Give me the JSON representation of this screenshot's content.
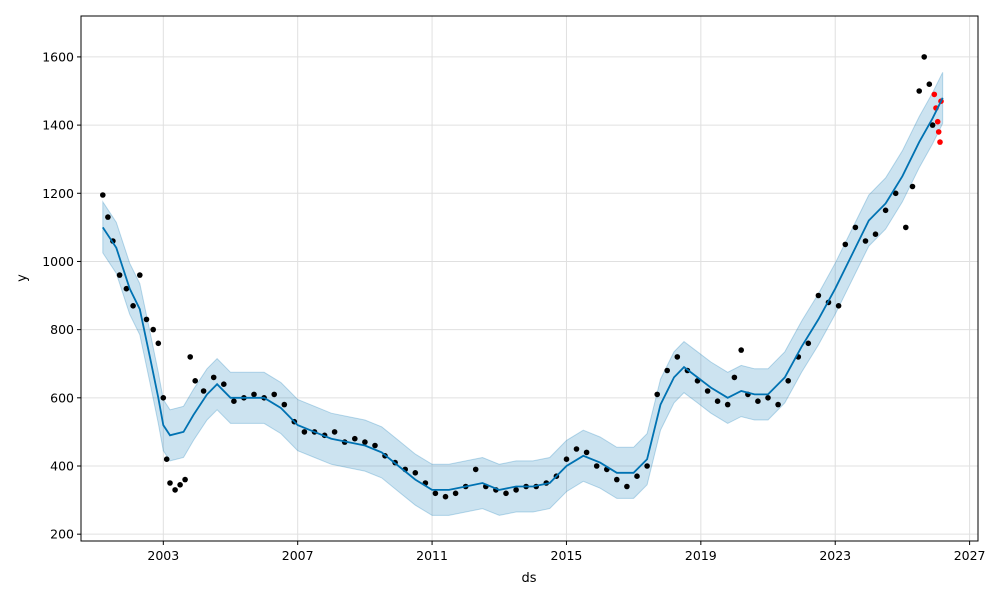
{
  "chart_data": {
    "type": "scatter",
    "title": "",
    "xlabel": "ds",
    "ylabel": "y",
    "xlim": [
      2000.55,
      2027.25
    ],
    "ylim": [
      180,
      1720
    ],
    "x_ticks": [
      2003,
      2007,
      2011,
      2015,
      2019,
      2023,
      2027
    ],
    "y_ticks": [
      200,
      400,
      600,
      800,
      1000,
      1200,
      1400,
      1600
    ],
    "grid": true,
    "colors": {
      "observed": "#000000",
      "forecast_points": "#ff0000",
      "trend_line": "#0072b2",
      "uncertainty_band": "#0072b2"
    },
    "series": [
      {
        "role": "observed",
        "points": [
          [
            2001.2,
            1195
          ],
          [
            2001.35,
            1130
          ],
          [
            2001.5,
            1060
          ],
          [
            2001.7,
            960
          ],
          [
            2001.9,
            920
          ],
          [
            2002.1,
            870
          ],
          [
            2002.3,
            960
          ],
          [
            2002.5,
            830
          ],
          [
            2002.7,
            800
          ],
          [
            2002.85,
            760
          ],
          [
            2003.0,
            600
          ],
          [
            2003.1,
            420
          ],
          [
            2003.2,
            350
          ],
          [
            2003.35,
            330
          ],
          [
            2003.5,
            345
          ],
          [
            2003.65,
            360
          ],
          [
            2003.8,
            720
          ],
          [
            2003.95,
            650
          ],
          [
            2004.2,
            620
          ],
          [
            2004.5,
            660
          ],
          [
            2004.8,
            640
          ],
          [
            2005.1,
            590
          ],
          [
            2005.4,
            600
          ],
          [
            2005.7,
            610
          ],
          [
            2006.0,
            600
          ],
          [
            2006.3,
            610
          ],
          [
            2006.6,
            580
          ],
          [
            2006.9,
            530
          ],
          [
            2007.2,
            500
          ],
          [
            2007.5,
            500
          ],
          [
            2007.8,
            490
          ],
          [
            2008.1,
            500
          ],
          [
            2008.4,
            470
          ],
          [
            2008.7,
            480
          ],
          [
            2009.0,
            470
          ],
          [
            2009.3,
            460
          ],
          [
            2009.6,
            430
          ],
          [
            2009.9,
            410
          ],
          [
            2010.2,
            390
          ],
          [
            2010.5,
            380
          ],
          [
            2010.8,
            350
          ],
          [
            2011.1,
            320
          ],
          [
            2011.4,
            310
          ],
          [
            2011.7,
            320
          ],
          [
            2012.0,
            340
          ],
          [
            2012.3,
            390
          ],
          [
            2012.6,
            340
          ],
          [
            2012.9,
            330
          ],
          [
            2013.2,
            320
          ],
          [
            2013.5,
            330
          ],
          [
            2013.8,
            340
          ],
          [
            2014.1,
            340
          ],
          [
            2014.4,
            350
          ],
          [
            2014.7,
            370
          ],
          [
            2015.0,
            420
          ],
          [
            2015.3,
            450
          ],
          [
            2015.6,
            440
          ],
          [
            2015.9,
            400
          ],
          [
            2016.2,
            390
          ],
          [
            2016.5,
            360
          ],
          [
            2016.8,
            340
          ],
          [
            2017.1,
            370
          ],
          [
            2017.4,
            400
          ],
          [
            2017.7,
            610
          ],
          [
            2018.0,
            680
          ],
          [
            2018.3,
            720
          ],
          [
            2018.6,
            680
          ],
          [
            2018.9,
            650
          ],
          [
            2019.2,
            620
          ],
          [
            2019.5,
            590
          ],
          [
            2019.8,
            580
          ],
          [
            2020.0,
            660
          ],
          [
            2020.2,
            740
          ],
          [
            2020.4,
            610
          ],
          [
            2020.7,
            590
          ],
          [
            2021.0,
            600
          ],
          [
            2021.3,
            580
          ],
          [
            2021.6,
            650
          ],
          [
            2021.9,
            720
          ],
          [
            2022.2,
            760
          ],
          [
            2022.5,
            900
          ],
          [
            2022.8,
            880
          ],
          [
            2023.1,
            870
          ],
          [
            2023.3,
            1050
          ],
          [
            2023.6,
            1100
          ],
          [
            2023.9,
            1060
          ],
          [
            2024.2,
            1080
          ],
          [
            2024.5,
            1150
          ],
          [
            2024.8,
            1200
          ],
          [
            2025.1,
            1100
          ],
          [
            2025.3,
            1220
          ],
          [
            2025.5,
            1500
          ],
          [
            2025.65,
            1600
          ],
          [
            2025.8,
            1520
          ],
          [
            2025.9,
            1400
          ]
        ]
      },
      {
        "role": "forecast_points",
        "points": [
          [
            2025.95,
            1490
          ],
          [
            2026.0,
            1450
          ],
          [
            2026.05,
            1410
          ],
          [
            2026.08,
            1380
          ],
          [
            2026.12,
            1350
          ],
          [
            2026.15,
            1470
          ]
        ]
      },
      {
        "role": "trend",
        "points": [
          [
            2001.2,
            1100
          ],
          [
            2001.6,
            1040
          ],
          [
            2002.0,
            920
          ],
          [
            2002.3,
            860
          ],
          [
            2002.6,
            720
          ],
          [
            2002.85,
            600
          ],
          [
            2003.0,
            520
          ],
          [
            2003.2,
            490
          ],
          [
            2003.6,
            500
          ],
          [
            2003.9,
            550
          ],
          [
            2004.3,
            610
          ],
          [
            2004.6,
            640
          ],
          [
            2005.0,
            600
          ],
          [
            2005.5,
            600
          ],
          [
            2006.0,
            600
          ],
          [
            2006.5,
            570
          ],
          [
            2007.0,
            520
          ],
          [
            2007.5,
            500
          ],
          [
            2008.0,
            480
          ],
          [
            2008.5,
            470
          ],
          [
            2009.0,
            460
          ],
          [
            2009.5,
            440
          ],
          [
            2010.0,
            400
          ],
          [
            2010.5,
            360
          ],
          [
            2011.0,
            330
          ],
          [
            2011.5,
            330
          ],
          [
            2012.0,
            340
          ],
          [
            2012.5,
            350
          ],
          [
            2013.0,
            330
          ],
          [
            2013.5,
            340
          ],
          [
            2014.0,
            340
          ],
          [
            2014.5,
            350
          ],
          [
            2015.0,
            400
          ],
          [
            2015.5,
            430
          ],
          [
            2016.0,
            410
          ],
          [
            2016.5,
            380
          ],
          [
            2017.0,
            380
          ],
          [
            2017.4,
            420
          ],
          [
            2017.8,
            580
          ],
          [
            2018.2,
            660
          ],
          [
            2018.5,
            690
          ],
          [
            2018.9,
            660
          ],
          [
            2019.3,
            630
          ],
          [
            2019.8,
            600
          ],
          [
            2020.2,
            620
          ],
          [
            2020.6,
            610
          ],
          [
            2021.0,
            610
          ],
          [
            2021.5,
            660
          ],
          [
            2022.0,
            750
          ],
          [
            2022.5,
            830
          ],
          [
            2023.0,
            920
          ],
          [
            2023.5,
            1020
          ],
          [
            2024.0,
            1120
          ],
          [
            2024.5,
            1170
          ],
          [
            2025.0,
            1250
          ],
          [
            2025.5,
            1350
          ],
          [
            2025.9,
            1420
          ],
          [
            2026.2,
            1480
          ]
        ]
      },
      {
        "role": "uncertainty_band",
        "half_width": 75
      }
    ]
  }
}
